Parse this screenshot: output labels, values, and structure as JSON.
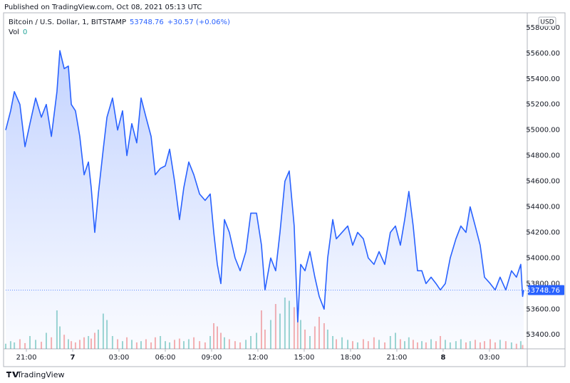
{
  "published": "Published on TradingView.com, Oct 08, 2021 05:13 UTC",
  "chart_data": {
    "type": "area",
    "title": "Bitcoin / U.S. Dollar, 1, BITSTAMP",
    "last_price": 53748.76,
    "change": "+30.57 (+0.06%)",
    "volume_label": "Vol",
    "volume_value": "0",
    "currency": "USD",
    "color": "#2962ff",
    "up_color": "#26a69a",
    "down_color": "#ef5350",
    "grid": false,
    "x": [
      -4.34,
      -4.02,
      -3.78,
      -3.42,
      -3.09,
      -2.77,
      -2.4,
      -2.03,
      -1.71,
      -1.38,
      -1.02,
      -0.83,
      -0.55,
      -0.28,
      -0.09,
      0.18,
      0.46,
      0.74,
      1.02,
      1.2,
      1.43,
      1.66,
      1.98,
      2.22,
      2.58,
      2.91,
      3.23,
      3.51,
      3.83,
      4.15,
      4.43,
      4.75,
      5.08,
      5.35,
      5.68,
      6,
      6.28,
      6.6,
      6.92,
      7.2,
      7.52,
      7.85,
      8.22,
      8.58,
      8.91,
      9.14,
      9.37,
      9.6,
      9.83,
      10.15,
      10.52,
      10.85,
      11.22,
      11.54,
      11.91,
      12.23,
      12.46,
      12.83,
      13.15,
      13.43,
      13.75,
      14.03,
      14.35,
      14.58,
      14.77,
      15.05,
      15.37,
      15.69,
      15.97,
      16.29,
      16.52,
      16.85,
      17.08,
      17.45,
      17.82,
      18.14,
      18.46,
      18.83,
      19.15,
      19.52,
      19.85,
      20.22,
      20.58,
      20.91,
      21.23,
      21.51,
      21.78,
      22.06,
      22.34,
      22.62,
      22.89,
      23.22,
      23.54,
      23.82,
      24.14,
      24.46,
      24.83,
      25.15,
      25.48,
      25.75,
      26.08,
      26.4,
      26.68,
      27.05,
      27.37,
      27.69,
      28.06,
      28.43,
      28.75,
      29.03,
      29.15,
      29.22
    ],
    "values": [
      55000,
      55150,
      55300,
      55200,
      54870,
      55050,
      55250,
      55100,
      55200,
      54950,
      55300,
      55620,
      55480,
      55500,
      55200,
      55150,
      54950,
      54650,
      54750,
      54550,
      54200,
      54500,
      54850,
      55100,
      55250,
      55000,
      55150,
      54800,
      55050,
      54900,
      55250,
      55100,
      54950,
      54650,
      54700,
      54720,
      54850,
      54600,
      54300,
      54550,
      54750,
      54650,
      54500,
      54450,
      54500,
      54200,
      53950,
      53800,
      54300,
      54200,
      54000,
      53900,
      54050,
      54350,
      54350,
      54100,
      53750,
      54000,
      53900,
      54200,
      54600,
      54680,
      54250,
      53500,
      53950,
      53900,
      54050,
      53850,
      53700,
      53600,
      54000,
      54300,
      54150,
      54200,
      54250,
      54100,
      54200,
      54150,
      54000,
      53950,
      54050,
      53950,
      54200,
      54250,
      54100,
      54300,
      54520,
      54250,
      53900,
      53900,
      53800,
      53850,
      53800,
      53750,
      53800,
      54000,
      54150,
      54250,
      54200,
      54400,
      54250,
      54100,
      53850,
      53800,
      53750,
      53850,
      53750,
      53900,
      53850,
      53950,
      53700,
      53748.76
    ],
    "volume": [
      8,
      12,
      10,
      15,
      9,
      20,
      14,
      11,
      25,
      18,
      60,
      35,
      22,
      15,
      12,
      10,
      14,
      18,
      20,
      16,
      25,
      30,
      55,
      45,
      20,
      15,
      12,
      18,
      14,
      10,
      12,
      15,
      10,
      18,
      20,
      12,
      10,
      14,
      16,
      12,
      15,
      18,
      12,
      10,
      20,
      40,
      35,
      25,
      18,
      15,
      12,
      10,
      14,
      20,
      25,
      60,
      30,
      45,
      70,
      55,
      80,
      75,
      65,
      60,
      45,
      30,
      20,
      35,
      50,
      40,
      30,
      20,
      15,
      18,
      14,
      12,
      10,
      15,
      12,
      18,
      14,
      10,
      20,
      25,
      15,
      12,
      18,
      14,
      10,
      12,
      10,
      15,
      12,
      20,
      14,
      10,
      12,
      15,
      10,
      12,
      14,
      10,
      12,
      15,
      10,
      14,
      12,
      10,
      8,
      12,
      6,
      0
    ],
    "vlim": [
      0,
      100
    ],
    "xlim": [
      -4.34,
      29.45
    ],
    "ylim": [
      53290,
      55905
    ],
    "xticks": [
      {
        "value": -3,
        "label": "21:00"
      },
      {
        "value": 0,
        "label": "7"
      },
      {
        "value": 3,
        "label": "03:00"
      },
      {
        "value": 6,
        "label": "06:00"
      },
      {
        "value": 9,
        "label": "09:00"
      },
      {
        "value": 12,
        "label": "12:00"
      },
      {
        "value": 15,
        "label": "15:00"
      },
      {
        "value": 18,
        "label": "18:00"
      },
      {
        "value": 21,
        "label": "21:00"
      },
      {
        "value": 24,
        "label": "8"
      },
      {
        "value": 27,
        "label": "03:00"
      }
    ],
    "yticks": [
      {
        "value": 53400,
        "label": "53400.00"
      },
      {
        "value": 53600,
        "label": "53600.00"
      },
      {
        "value": 53800,
        "label": "53800.00"
      },
      {
        "value": 54000,
        "label": "54000.00"
      },
      {
        "value": 54200,
        "label": "54200.00"
      },
      {
        "value": 54400,
        "label": "54400.00"
      },
      {
        "value": 54600,
        "label": "54600.00"
      },
      {
        "value": 54800,
        "label": "54800.00"
      },
      {
        "value": 55000,
        "label": "55000.00"
      },
      {
        "value": 55200,
        "label": "55200.00"
      },
      {
        "value": 55400,
        "label": "55400.00"
      },
      {
        "value": 55600,
        "label": "55600.00"
      },
      {
        "value": 55800,
        "label": "55800.00"
      }
    ]
  },
  "footer": {
    "brand": "TradingView"
  }
}
